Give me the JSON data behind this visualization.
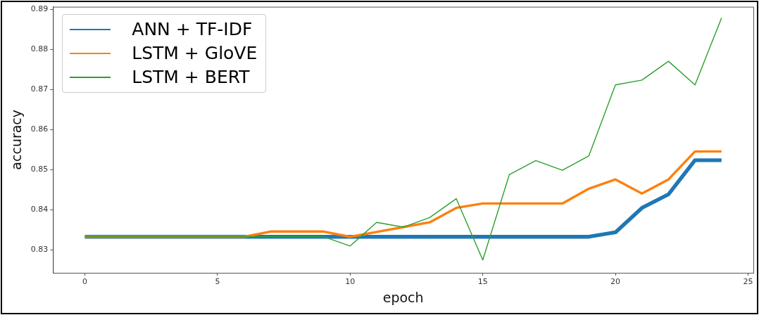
{
  "chart_data": {
    "type": "line",
    "xlabel": "epoch",
    "ylabel": "accuracy",
    "x": [
      0,
      1,
      2,
      3,
      4,
      5,
      6,
      7,
      8,
      9,
      10,
      11,
      12,
      13,
      14,
      15,
      16,
      17,
      18,
      19,
      20,
      21,
      22,
      23,
      24
    ],
    "series": [
      {
        "name": "ANN + TF-IDF",
        "color": "#1f77b4",
        "values": [
          0.8333,
          0.8333,
          0.8333,
          0.8333,
          0.8333,
          0.8333,
          0.8333,
          0.8333,
          0.8333,
          0.8333,
          0.8333,
          0.8333,
          0.8333,
          0.8333,
          0.8333,
          0.8333,
          0.8333,
          0.8333,
          0.8333,
          0.8333,
          0.8344,
          0.8405,
          0.8439,
          0.8524,
          0.8524
        ]
      },
      {
        "name": "LSTM + GloVE",
        "color": "#ff7f0e",
        "values": [
          0.8333,
          0.8333,
          0.8333,
          0.8333,
          0.8333,
          0.8333,
          0.8333,
          0.8346,
          0.8346,
          0.8346,
          0.8333,
          0.8345,
          0.8357,
          0.8369,
          0.8405,
          0.8416,
          0.8416,
          0.8416,
          0.8416,
          0.8453,
          0.8476,
          0.8441,
          0.8476,
          0.8546,
          0.8546
        ]
      },
      {
        "name": "LSTM + BERT",
        "color": "#2ca02c",
        "values": [
          0.8333,
          0.8333,
          0.8333,
          0.8333,
          0.8333,
          0.8333,
          0.8333,
          0.8333,
          0.8333,
          0.8333,
          0.831,
          0.8369,
          0.8357,
          0.8381,
          0.8428,
          0.8275,
          0.8488,
          0.8523,
          0.8499,
          0.8535,
          0.8712,
          0.8724,
          0.8771,
          0.8712,
          0.8879
        ]
      }
    ],
    "xlim": [
      -1.2,
      25.2
    ],
    "xticks": [
      0,
      5,
      10,
      15,
      20,
      25
    ],
    "ylim": [
      0.8243,
      0.8907
    ],
    "yticks": [
      0.83,
      0.84,
      0.85,
      0.86,
      0.87,
      0.88,
      0.89
    ],
    "grid": false,
    "legend": "top left",
    "marker": "none",
    "line_style": "solid"
  }
}
